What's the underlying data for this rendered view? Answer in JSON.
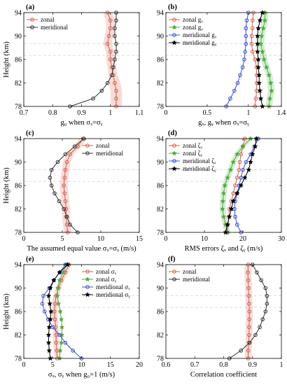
{
  "chart_data": [
    {
      "id": "a",
      "type": "line",
      "panel_label": "(a)",
      "xlabel": "g₀ when σₓ=σᵧ",
      "ylabel": "Height (km)",
      "xlim": [
        0.7,
        1.1
      ],
      "ylim": [
        78,
        94
      ],
      "xticks": [
        0.7,
        0.8,
        0.9,
        1.0,
        1.1
      ],
      "xtick_labels": [
        "0.7",
        "0.8",
        "0.9",
        "1",
        "1.1"
      ],
      "yticks": [
        78,
        82,
        86,
        90,
        94
      ],
      "ytick_labels": [
        "78",
        "82",
        "86",
        "90",
        "94"
      ],
      "legend": "top-left",
      "series": [
        {
          "name": "zonal",
          "color": "#d6604d",
          "marker": "circle",
          "fill": true,
          "x": [
            1.02,
            1.02,
            1.02,
            1.015,
            1.01,
            1.005,
            1.0,
            1.0,
            0.99,
            0.995,
            1.0,
            1.0,
            0.99
          ],
          "band": [
            0.02,
            0.02,
            0.02,
            0.02,
            0.015,
            0.015,
            0.015,
            0.015,
            0.015,
            0.015,
            0.015,
            0.015,
            0.015
          ],
          "y": [
            78,
            79.33,
            80.67,
            82,
            83.33,
            84.67,
            86,
            87.33,
            88.67,
            90,
            91.33,
            92.67,
            94
          ]
        },
        {
          "name": "meridional",
          "color": "#333333",
          "marker": "circle",
          "fill": false,
          "x": [
            0.86,
            0.94,
            0.97,
            0.99,
            1.005,
            1.01,
            1.015,
            1.02,
            1.02,
            1.015,
            1.015,
            1.02,
            1.02
          ],
          "y": [
            78,
            79.33,
            80.67,
            82,
            83.33,
            84.67,
            86,
            87.33,
            88.67,
            90,
            91.33,
            92.67,
            94
          ]
        }
      ]
    },
    {
      "id": "b",
      "type": "line",
      "panel_label": "(b)",
      "xlabel": "gₓ, gᵧ when σₓ=σᵧ",
      "ylabel": "",
      "xlim": [
        0,
        1.4
      ],
      "ylim": [
        78,
        94
      ],
      "xticks": [
        0,
        0.5,
        1.0,
        1.4
      ],
      "xtick_labels": [
        "0",
        "0.5",
        "1",
        "1.4"
      ],
      "yticks": [
        78,
        82,
        86,
        90,
        94
      ],
      "ytick_labels": [
        "78",
        "82",
        "86",
        "90",
        "94"
      ],
      "legend": "top-left",
      "series": [
        {
          "name": "zonal gₓ",
          "color": "#d6604d",
          "marker": "circle",
          "fill": false,
          "x": [
            1.08,
            1.09,
            1.1,
            1.1,
            1.1,
            1.1,
            1.08,
            1.05,
            1.04,
            1.04,
            1.05,
            1.05,
            1.06
          ],
          "y": [
            78,
            79.33,
            80.67,
            82,
            83.33,
            84.67,
            86,
            87.33,
            88.67,
            90,
            91.33,
            92.67,
            94
          ]
        },
        {
          "name": "zonal gᵧ",
          "color": "#4cae3e",
          "marker": "star",
          "fill": true,
          "x": [
            1.25,
            1.26,
            1.28,
            1.27,
            1.25,
            1.22,
            1.19,
            1.17,
            1.15,
            1.16,
            1.18,
            1.2,
            1.2
          ],
          "band": [
            0.04,
            0.04,
            0.04,
            0.04,
            0.04,
            0.04,
            0.04,
            0.04,
            0.04,
            0.04,
            0.04,
            0.04,
            0.04
          ],
          "y": [
            78,
            79.33,
            80.67,
            82,
            83.33,
            84.67,
            86,
            87.33,
            88.67,
            90,
            91.33,
            92.67,
            94
          ]
        },
        {
          "name": "meridional gₓ",
          "color": "#3b4cd8",
          "marker": "circle",
          "fill": false,
          "x": [
            0.73,
            0.78,
            0.83,
            0.87,
            0.9,
            0.93,
            0.95,
            0.96,
            0.97,
            0.97,
            0.97,
            0.98,
            1.0
          ],
          "y": [
            78,
            79.33,
            80.67,
            82,
            83.33,
            84.67,
            86,
            87.33,
            88.67,
            90,
            91.33,
            92.67,
            94
          ]
        },
        {
          "name": "meridional gᵧ",
          "color": "#000000",
          "marker": "star",
          "fill": false,
          "x": [
            1.17,
            1.15,
            1.14,
            1.13,
            1.13,
            1.12,
            1.12,
            1.11,
            1.11,
            1.11,
            1.12,
            1.14,
            1.17
          ],
          "y": [
            78,
            79.33,
            80.67,
            82,
            83.33,
            84.67,
            86,
            87.33,
            88.67,
            90,
            91.33,
            92.67,
            94
          ]
        }
      ]
    },
    {
      "id": "c",
      "type": "line",
      "panel_label": "(c)",
      "xlabel": "The assumed equal value σₓ=σᵧ (m/s)",
      "ylabel": "Height (km)",
      "xlim": [
        0,
        15
      ],
      "ylim": [
        78,
        94
      ],
      "xticks": [
        0,
        5,
        10,
        15
      ],
      "xtick_labels": [
        "0",
        "5",
        "10",
        "15"
      ],
      "yticks": [
        78,
        82,
        86,
        90,
        94
      ],
      "ytick_labels": [
        "78",
        "82",
        "86",
        "90",
        "94"
      ],
      "legend": "top-right",
      "series": [
        {
          "name": "zonal",
          "color": "#d6604d",
          "marker": "circle",
          "fill": true,
          "x": [
            5.7,
            5.6,
            5.5,
            5.5,
            5.4,
            5.3,
            5.2,
            5.3,
            5.4,
            5.6,
            6.0,
            7.0,
            7.7
          ],
          "band": [
            0.5,
            0.5,
            0.5,
            0.5,
            0.5,
            0.5,
            0.5,
            0.5,
            0.5,
            0.5,
            0.5,
            0.5,
            0.5
          ],
          "y": [
            78,
            79.33,
            80.67,
            82,
            83.33,
            84.67,
            86,
            87.33,
            88.67,
            90,
            91.33,
            92.67,
            94
          ]
        },
        {
          "name": "meridional",
          "color": "#333333",
          "marker": "circle",
          "fill": false,
          "x": [
            7.0,
            6.0,
            5.6,
            5.2,
            4.6,
            4.0,
            3.6,
            3.4,
            3.6,
            4.4,
            5.4,
            6.6,
            7.8
          ],
          "y": [
            78,
            79.33,
            80.67,
            82,
            83.33,
            84.67,
            86,
            87.33,
            88.67,
            90,
            91.33,
            92.67,
            94
          ]
        }
      ]
    },
    {
      "id": "d",
      "type": "line",
      "panel_label": "(d)",
      "xlabel": "RMS errors ζₓ and ζᵧ (m/s)",
      "ylabel": "",
      "xlim": [
        0,
        30
      ],
      "ylim": [
        78,
        94
      ],
      "xticks": [
        0,
        10,
        20,
        30
      ],
      "xtick_labels": [
        "0",
        "10",
        "20",
        "30"
      ],
      "yticks": [
        78,
        82,
        86,
        90,
        94
      ],
      "ytick_labels": [
        "78",
        "82",
        "86",
        "90",
        "94"
      ],
      "legend": "top-left",
      "series": [
        {
          "name": "zonal ζₓ",
          "color": "#d6604d",
          "marker": "circle",
          "fill": false,
          "x": [
            16.0,
            16.1,
            16.3,
            16.5,
            17.0,
            17.5,
            18.0,
            18.5,
            19.0,
            19.2,
            19.5,
            20.0,
            20.5
          ],
          "y": [
            78,
            79.33,
            80.67,
            82,
            83.33,
            84.67,
            86,
            87.33,
            88.67,
            90,
            91.33,
            92.67,
            94
          ]
        },
        {
          "name": "zonal ζᵧ",
          "color": "#4cae3e",
          "marker": "star",
          "fill": true,
          "x": [
            16.0,
            15.5,
            15.0,
            14.7,
            14.8,
            15.0,
            15.3,
            16.0,
            16.8,
            17.5,
            18.5,
            20.0,
            22.0
          ],
          "band": [
            0.8,
            0.8,
            0.8,
            0.8,
            0.8,
            0.8,
            0.8,
            0.8,
            0.8,
            0.8,
            0.8,
            0.8,
            0.8
          ],
          "y": [
            78,
            79.33,
            80.67,
            82,
            83.33,
            84.67,
            86,
            87.33,
            88.67,
            90,
            91.33,
            92.67,
            94
          ]
        },
        {
          "name": "meridional ζₓ",
          "color": "#3b4cd8",
          "marker": "circle",
          "fill": false,
          "x": [
            19.5,
            18.5,
            18.0,
            17.8,
            18.0,
            18.5,
            19.0,
            19.5,
            20.0,
            20.8,
            22.0,
            23.0,
            24.0
          ],
          "y": [
            78,
            79.33,
            80.67,
            82,
            83.33,
            84.67,
            86,
            87.33,
            88.67,
            90,
            91.33,
            92.67,
            94
          ]
        },
        {
          "name": "meridional ζᵧ",
          "color": "#000000",
          "marker": "star",
          "fill": false,
          "x": [
            15.5,
            16.0,
            16.5,
            17.0,
            17.5,
            18.5,
            19.5,
            20.5,
            21.5,
            22.0,
            22.5,
            23.2,
            23.5
          ],
          "y": [
            78,
            79.33,
            80.67,
            82,
            83.33,
            84.67,
            86,
            87.33,
            88.67,
            90,
            91.33,
            92.67,
            94
          ]
        }
      ]
    },
    {
      "id": "e",
      "type": "line",
      "panel_label": "(e)",
      "xlabel": "σₓ, σᵧ when g₀=1 (m/s)",
      "ylabel": "Height (km)",
      "xlim": [
        0,
        20
      ],
      "ylim": [
        78,
        94
      ],
      "xticks": [
        0,
        5,
        10,
        15,
        20
      ],
      "xtick_labels": [
        "0",
        "5",
        "10",
        "15",
        "20"
      ],
      "yticks": [
        78,
        82,
        86,
        90,
        94
      ],
      "ytick_labels": [
        "78",
        "82",
        "86",
        "90",
        "94"
      ],
      "legend": "top-right",
      "series": [
        {
          "name": "zonal σₓ",
          "color": "#d6604d",
          "marker": "circle",
          "fill": true,
          "x": [
            5.8,
            5.7,
            5.6,
            5.6,
            5.5,
            5.4,
            5.3,
            5.4,
            5.6,
            6.0,
            6.5,
            7.2,
            7.8
          ],
          "band": [
            0.5,
            0.5,
            0.5,
            0.5,
            0.5,
            0.5,
            0.5,
            0.5,
            0.5,
            0.5,
            0.5,
            0.5,
            0.5
          ],
          "y": [
            78,
            79.33,
            80.67,
            82,
            83.33,
            84.67,
            86,
            87.33,
            88.67,
            90,
            91.33,
            92.67,
            94
          ]
        },
        {
          "name": "zonal σᵧ",
          "color": "#4cae3e",
          "marker": "star",
          "fill": false,
          "x": [
            6.2,
            6.3,
            6.5,
            6.6,
            6.6,
            6.5,
            6.3,
            6.0,
            5.8,
            5.9,
            6.2,
            6.8,
            7.4
          ],
          "y": [
            78,
            79.33,
            80.67,
            82,
            83.33,
            84.67,
            86,
            87.33,
            88.67,
            90,
            91.33,
            92.67,
            94
          ]
        },
        {
          "name": "meridional σₓ",
          "color": "#3b4cd8",
          "marker": "circle",
          "fill": false,
          "x": [
            10.0,
            8.5,
            7.2,
            6.2,
            5.0,
            4.2,
            3.6,
            3.2,
            3.4,
            4.4,
            5.2,
            6.2,
            7.2
          ],
          "y": [
            78,
            79.33,
            80.67,
            82,
            83.33,
            84.67,
            86,
            87.33,
            88.67,
            90,
            91.33,
            92.67,
            94
          ]
        },
        {
          "name": "meridional σᵧ",
          "color": "#000000",
          "marker": "star",
          "fill": false,
          "x": [
            4.6,
            4.4,
            4.3,
            4.3,
            4.4,
            4.6,
            4.7,
            4.5,
            4.3,
            4.6,
            5.2,
            6.2,
            7.6
          ],
          "y": [
            78,
            79.33,
            80.67,
            82,
            83.33,
            84.67,
            86,
            87.33,
            88.67,
            90,
            91.33,
            92.67,
            94
          ]
        }
      ]
    },
    {
      "id": "f",
      "type": "line",
      "panel_label": "(f)",
      "xlabel": "Correlation coefficient",
      "ylabel": "",
      "xlim": [
        0.6,
        1.0
      ],
      "ylim": [
        78,
        94
      ],
      "xticks": [
        0.6,
        0.7,
        0.8,
        0.9,
        1.0
      ],
      "xtick_labels": [
        "0.6",
        "0.7",
        "0.8",
        "0.9",
        "1"
      ],
      "yticks": [
        78,
        82,
        86,
        90,
        94
      ],
      "ytick_labels": [
        "78",
        "82",
        "86",
        "90",
        "94"
      ],
      "legend": "top-left",
      "series": [
        {
          "name": "zonal",
          "color": "#d6604d",
          "marker": "circle",
          "fill": true,
          "x": [
            0.885,
            0.885,
            0.887,
            0.888,
            0.888,
            0.889,
            0.889,
            0.888,
            0.887,
            0.886,
            0.885,
            0.884,
            0.885
          ],
          "band": [
            0.012,
            0.012,
            0.012,
            0.012,
            0.012,
            0.012,
            0.012,
            0.012,
            0.012,
            0.012,
            0.012,
            0.012,
            0.012
          ],
          "y": [
            78,
            79.33,
            80.67,
            82,
            83.33,
            84.67,
            86,
            87.33,
            88.67,
            90,
            91.33,
            92.67,
            94
          ]
        },
        {
          "name": "meridional",
          "color": "#333333",
          "marker": "circle",
          "fill": false,
          "x": [
            0.82,
            0.86,
            0.89,
            0.91,
            0.925,
            0.935,
            0.945,
            0.95,
            0.95,
            0.945,
            0.93,
            0.915,
            0.9
          ],
          "y": [
            78,
            79.33,
            80.67,
            82,
            83.33,
            84.67,
            86,
            87.33,
            88.67,
            90,
            91.33,
            92.67,
            94
          ]
        }
      ]
    }
  ]
}
